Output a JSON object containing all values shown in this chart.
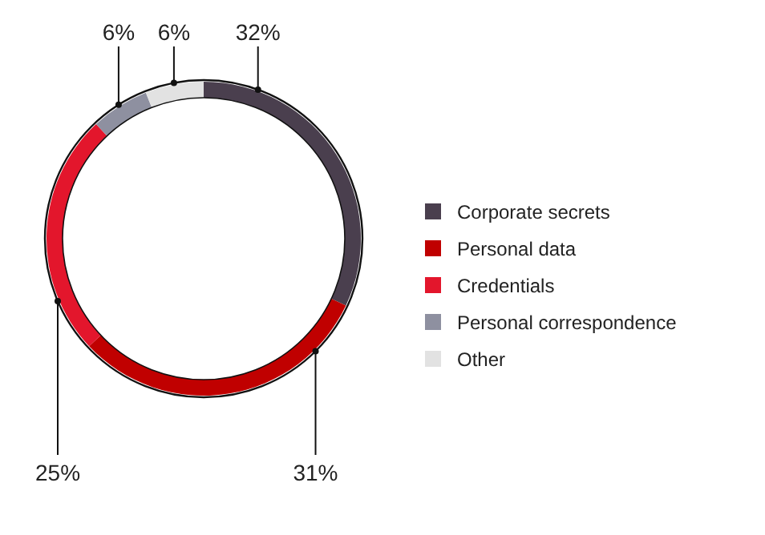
{
  "chart_data": {
    "type": "donut",
    "categories": [
      "Corporate secrets",
      "Personal data",
      "Credentials",
      "Personal correspondence",
      "Other"
    ],
    "values": [
      32,
      31,
      25,
      6,
      6
    ],
    "colors": [
      "#4a3f4e",
      "#c00000",
      "#e3162c",
      "#8e90a0",
      "#e2e2e2"
    ],
    "value_labels": [
      "32%",
      "31%",
      "25%",
      "6%",
      "6%"
    ],
    "legend": "right"
  }
}
